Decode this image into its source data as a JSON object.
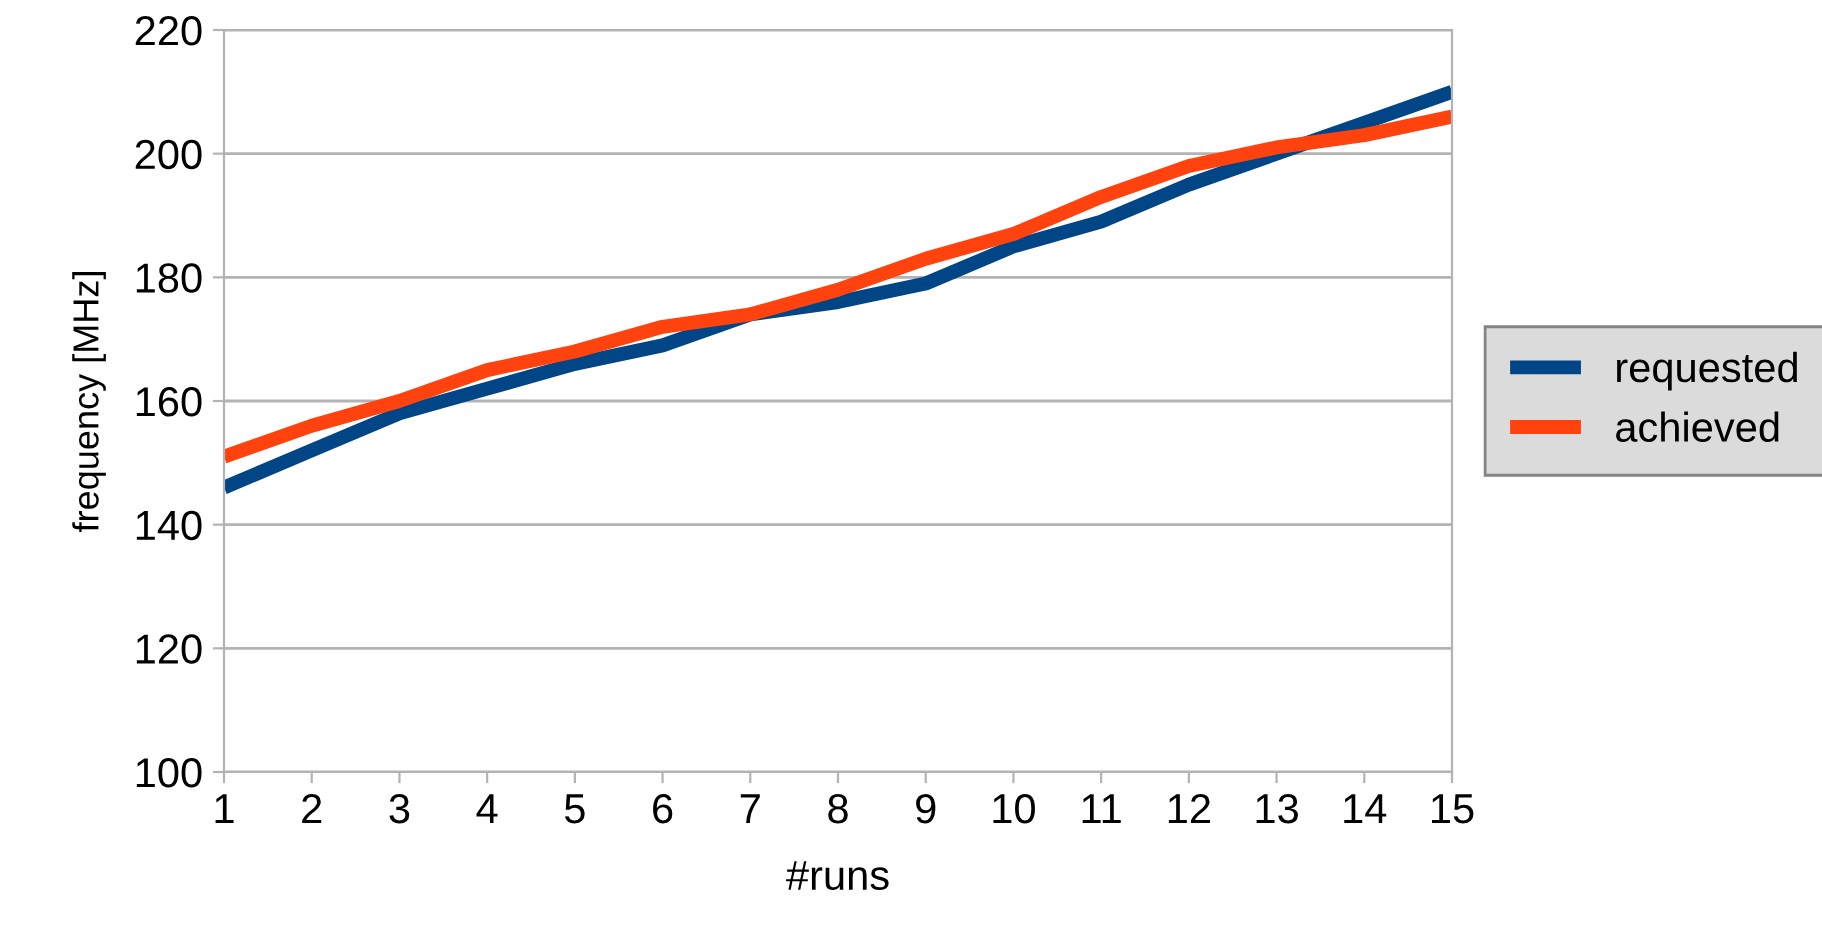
{
  "chart_data": {
    "type": "line",
    "xlabel": "#runs",
    "ylabel": "frequency [MHz]",
    "categories": [
      "1",
      "2",
      "3",
      "4",
      "5",
      "6",
      "7",
      "8",
      "9",
      "10",
      "11",
      "12",
      "13",
      "14",
      "15"
    ],
    "series": [
      {
        "name": "requested",
        "color": "#004586",
        "values": [
          146,
          152,
          158,
          162,
          166,
          169,
          174,
          176,
          179,
          185,
          189,
          195,
          200,
          205,
          210
        ]
      },
      {
        "name": "achieved",
        "color": "#ff420e",
        "values": [
          151,
          156,
          160,
          165,
          168,
          172,
          174,
          178,
          183,
          187,
          193,
          198,
          201,
          203,
          206
        ]
      }
    ],
    "ylim": [
      100,
      220
    ],
    "yticks": [
      100,
      120,
      140,
      160,
      180,
      200,
      220
    ],
    "grid": "y",
    "legend": "right",
    "marker": "none",
    "line_style": "solid"
  }
}
